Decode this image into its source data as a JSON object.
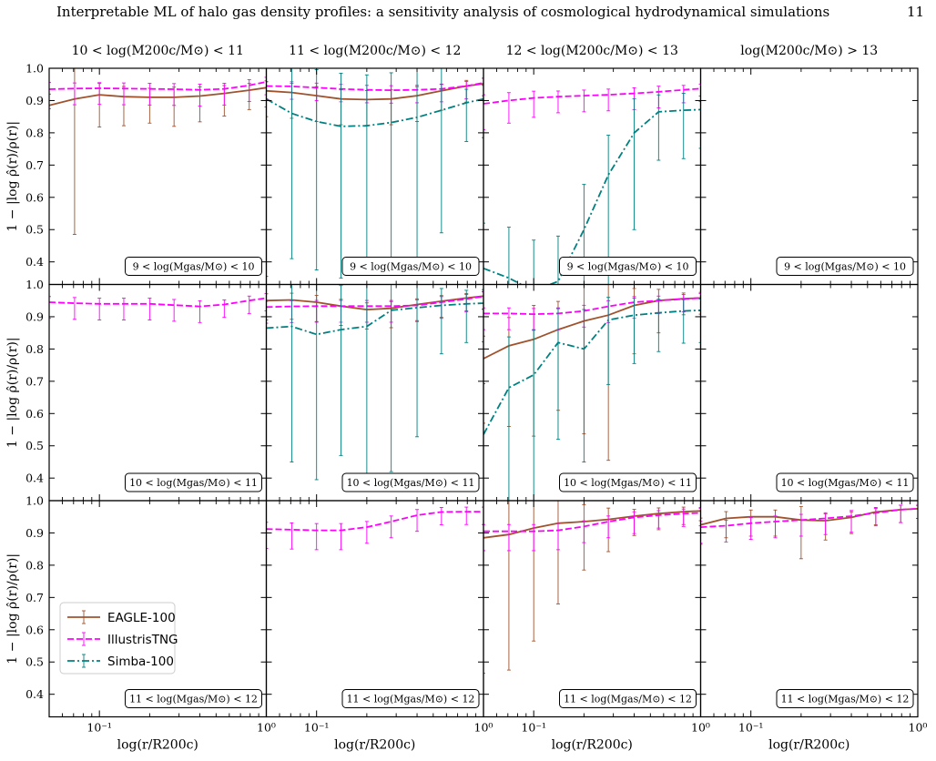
{
  "page_header": {
    "title": "Interpretable ML of halo gas density profiles: a sensitivity analysis of cosmological hydrodynamical simulations",
    "page_number": "11"
  },
  "colors": {
    "EAGLE-100": "#a0522d",
    "IllustrisTNG": "#ff00ff",
    "Simba-100": "#008080"
  },
  "chart_data": {
    "type": "line",
    "layout": "3x4 grid of panels with shared axes",
    "column_titles": [
      "10 < log(M200c/M⊙) < 11",
      "11 < log(M200c/M⊙) < 12",
      "12 < log(M200c/M⊙) < 13",
      "log(M200c/M⊙) > 13"
    ],
    "row_labels": [
      "9 < log(Mgas/M⊙) < 10",
      "10 < log(Mgas/M⊙) < 11",
      "11 < log(Mgas/M⊙) < 12"
    ],
    "xlabel": "log(r/R200c)",
    "ylabel": "1 − |log ρ̂(r)/ρ(r)|",
    "x_scale": "log",
    "xlim": [
      0.05,
      1.0
    ],
    "ylim": [
      0.33,
      1.0
    ],
    "xticks": [
      "10⁻¹",
      "10⁰"
    ],
    "yticks": [
      "0.4",
      "0.5",
      "0.6",
      "0.7",
      "0.8",
      "0.9",
      "1.0"
    ],
    "legend": {
      "placement": "lower-left of panel row 3 column 1",
      "entries": [
        "EAGLE-100",
        "IllustrisTNG",
        "Simba-100"
      ]
    },
    "series_styles": {
      "EAGLE-100": "solid",
      "IllustrisTNG": "dashed",
      "Simba-100": "dash-dot"
    },
    "x": [
      0.05,
      0.071,
      0.1,
      0.14,
      0.2,
      0.28,
      0.4,
      0.56,
      0.79,
      1.0
    ],
    "panels": [
      {
        "row": 0,
        "col": 0,
        "series": [
          {
            "name": "EAGLE-100",
            "y": [
              0.885,
              0.905,
              0.918,
              0.912,
              0.91,
              0.91,
              0.914,
              0.922,
              0.932,
              0.94
            ],
            "err": [
              0.1,
              0.42,
              0.1,
              0.09,
              0.08,
              0.09,
              0.08,
              0.07,
              0.06,
              0.06
            ]
          },
          {
            "name": "IllustrisTNG",
            "y": [
              0.935,
              0.937,
              0.938,
              0.937,
              0.936,
              0.935,
              0.933,
              0.936,
              0.947,
              0.958
            ],
            "err": [
              0.06,
              0.05,
              0.05,
              0.05,
              0.05,
              0.05,
              0.05,
              0.05,
              0.05,
              0.04
            ]
          }
        ]
      },
      {
        "row": 0,
        "col": 1,
        "series": [
          {
            "name": "EAGLE-100",
            "y": [
              0.93,
              0.925,
              0.915,
              0.905,
              0.903,
              0.905,
              0.915,
              0.93,
              0.945,
              0.952
            ],
            "err": [
              0.08,
              0.08,
              0.08,
              0.08,
              0.08,
              0.08,
              0.08,
              0.06,
              0.05,
              0.05
            ]
          },
          {
            "name": "IllustrisTNG",
            "y": [
              0.945,
              0.944,
              0.94,
              0.936,
              0.933,
              0.932,
              0.933,
              0.936,
              0.945,
              0.955
            ],
            "err": [
              0.04,
              0.04,
              0.04,
              0.04,
              0.04,
              0.04,
              0.04,
              0.04,
              0.04,
              0.04
            ]
          },
          {
            "name": "Simba-100",
            "y": [
              0.905,
              0.86,
              0.835,
              0.82,
              0.822,
              0.832,
              0.848,
              0.87,
              0.893,
              0.905
            ],
            "err": [
              0.55,
              0.45,
              0.46,
              0.47,
              0.45,
              0.44,
              0.44,
              0.38,
              0.12,
              0.12
            ]
          }
        ]
      },
      {
        "row": 0,
        "col": 2,
        "series": [
          {
            "name": "IllustrisTNG",
            "y": [
              0.89,
              0.9,
              0.908,
              0.912,
              0.915,
              0.918,
              0.922,
              0.927,
              0.933,
              0.937
            ],
            "err": [
              0.08,
              0.07,
              0.06,
              0.05,
              0.05,
              0.05,
              0.05,
              0.05,
              0.04,
              0.04
            ]
          },
          {
            "name": "Simba-100",
            "y": [
              0.38,
              0.35,
              0.31,
              0.34,
              0.5,
              0.67,
              0.8,
              0.865,
              0.87,
              0.872
            ],
            "err": [
              0.4,
              0.45,
              0.45,
              0.4,
              0.4,
              0.35,
              0.3,
              0.15,
              0.15,
              0.12
            ]
          }
        ]
      },
      {
        "row": 0,
        "col": 3,
        "series": []
      },
      {
        "row": 1,
        "col": 0,
        "series": [
          {
            "name": "IllustrisTNG",
            "y": [
              0.945,
              0.942,
              0.94,
              0.94,
              0.94,
              0.936,
              0.932,
              0.938,
              0.95,
              0.958
            ],
            "err": [
              0.05,
              0.05,
              0.05,
              0.05,
              0.05,
              0.05,
              0.05,
              0.04,
              0.04,
              0.04
            ]
          }
        ]
      },
      {
        "row": 1,
        "col": 1,
        "series": [
          {
            "name": "EAGLE-100",
            "y": [
              0.95,
              0.952,
              0.945,
              0.933,
              0.922,
              0.926,
              0.938,
              0.948,
              0.958,
              0.964
            ],
            "err": [
              0.06,
              0.06,
              0.06,
              0.06,
              0.06,
              0.06,
              0.05,
              0.05,
              0.04,
              0.04
            ]
          },
          {
            "name": "IllustrisTNG",
            "y": [
              0.93,
              0.932,
              0.933,
              0.933,
              0.933,
              0.933,
              0.935,
              0.945,
              0.955,
              0.963
            ],
            "err": [
              0.05,
              0.05,
              0.05,
              0.05,
              0.05,
              0.05,
              0.05,
              0.05,
              0.04,
              0.04
            ]
          },
          {
            "name": "Simba-100",
            "y": [
              0.865,
              0.87,
              0.845,
              0.86,
              0.87,
              0.92,
              0.928,
              0.935,
              0.94,
              0.942
            ],
            "err": [
              0.55,
              0.42,
              0.45,
              0.39,
              0.5,
              0.5,
              0.4,
              0.15,
              0.12,
              0.12
            ]
          }
        ]
      },
      {
        "row": 1,
        "col": 2,
        "series": [
          {
            "name": "EAGLE-100",
            "y": [
              0.77,
              0.81,
              0.83,
              0.86,
              0.887,
              0.905,
              0.935,
              0.95,
              0.956,
              0.958
            ],
            "err": [
              0.2,
              0.25,
              0.3,
              0.25,
              0.35,
              0.45,
              0.15,
              0.1,
              0.05,
              0.05
            ]
          },
          {
            "name": "IllustrisTNG",
            "y": [
              0.91,
              0.91,
              0.908,
              0.91,
              0.918,
              0.932,
              0.945,
              0.95,
              0.955,
              0.958
            ],
            "err": [
              0.05,
              0.05,
              0.05,
              0.05,
              0.05,
              0.05,
              0.05,
              0.04,
              0.04,
              0.04
            ]
          },
          {
            "name": "Simba-100",
            "y": [
              0.535,
              0.68,
              0.72,
              0.82,
              0.8,
              0.89,
              0.905,
              0.912,
              0.918,
              0.92
            ],
            "err": [
              0.45,
              0.45,
              0.4,
              0.3,
              0.35,
              0.2,
              0.15,
              0.12,
              0.1,
              0.1
            ]
          }
        ]
      },
      {
        "row": 1,
        "col": 3,
        "series": []
      },
      {
        "row": 2,
        "col": 0,
        "series": []
      },
      {
        "row": 2,
        "col": 1,
        "series": [
          {
            "name": "IllustrisTNG",
            "y": [
              0.912,
              0.91,
              0.908,
              0.908,
              0.918,
              0.935,
              0.955,
              0.965,
              0.966,
              0.966
            ],
            "err": [
              0.06,
              0.06,
              0.06,
              0.06,
              0.05,
              0.05,
              0.05,
              0.04,
              0.04,
              0.04
            ]
          }
        ]
      },
      {
        "row": 2,
        "col": 2,
        "series": [
          {
            "name": "EAGLE-100",
            "y": [
              0.885,
              0.895,
              0.915,
              0.93,
              0.935,
              0.942,
              0.952,
              0.96,
              0.966,
              0.968
            ],
            "err": [
              0.42,
              0.42,
              0.35,
              0.25,
              0.15,
              0.1,
              0.06,
              0.05,
              0.04,
              0.03
            ]
          },
          {
            "name": "IllustrisTNG",
            "y": [
              0.905,
              0.905,
              0.905,
              0.908,
              0.92,
              0.935,
              0.948,
              0.955,
              0.96,
              0.962
            ],
            "err": [
              0.06,
              0.06,
              0.06,
              0.06,
              0.05,
              0.05,
              0.05,
              0.04,
              0.04,
              0.04
            ]
          }
        ]
      },
      {
        "row": 2,
        "col": 3,
        "series": [
          {
            "name": "EAGLE-100",
            "y": [
              0.925,
              0.945,
              0.95,
              0.95,
              0.94,
              0.938,
              0.948,
              0.965,
              0.972,
              0.975
            ],
            "err": [
              0.06,
              0.06,
              0.06,
              0.06,
              0.12,
              0.06,
              0.05,
              0.04,
              0.04,
              0.03
            ]
          },
          {
            "name": "IllustrisTNG",
            "y": [
              0.918,
              0.922,
              0.93,
              0.935,
              0.94,
              0.945,
              0.952,
              0.962,
              0.972,
              0.975
            ],
            "err": [
              0.05,
              0.05,
              0.05,
              0.05,
              0.05,
              0.05,
              0.05,
              0.04,
              0.04,
              0.03
            ]
          }
        ]
      }
    ]
  }
}
